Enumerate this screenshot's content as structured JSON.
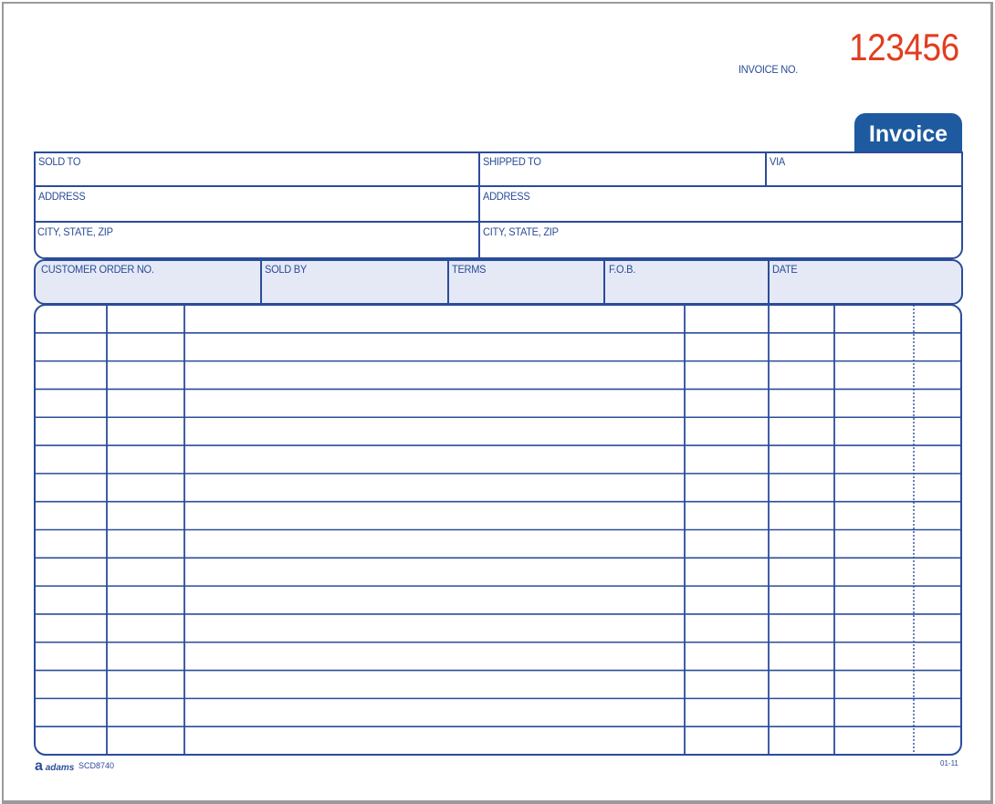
{
  "invoice_number": {
    "label": "INVOICE NO.",
    "value": "123456"
  },
  "form_title": "Invoice",
  "address_section": {
    "sold_to": "SOLD TO",
    "shipped_to": "SHIPPED TO",
    "via": "VIA",
    "address_left": "ADDRESS",
    "address_right": "ADDRESS",
    "city_left": "CITY, STATE, ZIP",
    "city_right": "CITY, STATE, ZIP"
  },
  "order_section": {
    "headers": [
      "CUSTOMER ORDER NO.",
      "SOLD BY",
      "TERMS",
      "F.O.B.",
      "DATE"
    ],
    "fill_color": "#e4e9f5"
  },
  "line_items": {
    "rows": 16,
    "columns": 7
  },
  "footer": {
    "brand": "adams",
    "form_code": "SCD8740",
    "revision": "01-11"
  },
  "colors": {
    "ink": "#2b4c9a",
    "number": "#e13d1f",
    "tab": "#1d5aa0"
  }
}
